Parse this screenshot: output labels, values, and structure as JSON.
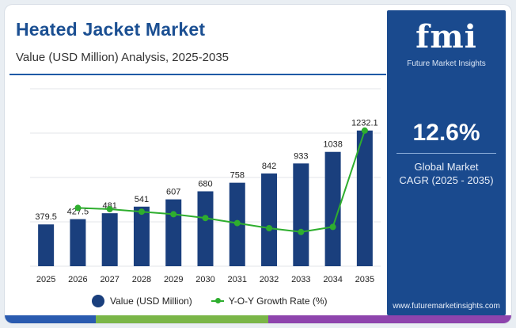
{
  "header": {
    "title": "Heated Jacket Market",
    "subtitle": "Value (USD Million) Analysis, 2025-2035"
  },
  "side_panel": {
    "logo_text": "fmi",
    "logo_sub": "Future Market Insights",
    "cagr_value": "12.6%",
    "cagr_label_1": "Global Market",
    "cagr_label_2": "CAGR (2025 - 2035)",
    "url": "www.futuremarketinsights.com",
    "background_color": "#1a4a8e"
  },
  "legend": {
    "bar_label": "Value (USD Million)",
    "line_label": "Y-O-Y Growth Rate (%)"
  },
  "chart_data": {
    "type": "bar",
    "categories": [
      "2025",
      "2026",
      "2027",
      "2028",
      "2029",
      "2030",
      "2031",
      "2032",
      "2033",
      "2034",
      "2035"
    ],
    "series": [
      {
        "name": "Value (USD Million)",
        "type": "bar",
        "color": "#1a3f7d",
        "values": [
          379.5,
          427.5,
          481,
          541,
          607,
          680,
          758,
          842,
          933,
          1038,
          1232.1
        ],
        "labels": [
          "379.5",
          "427.5",
          "481",
          "541",
          "607",
          "680",
          "758",
          "842",
          "933",
          "1038",
          "1232.1"
        ]
      },
      {
        "name": "Y-O-Y Growth Rate (%)",
        "type": "line",
        "color": "#2eae2e",
        "x": [
          "2026",
          "2027",
          "2028",
          "2029",
          "2030",
          "2031",
          "2032",
          "2033",
          "2034",
          "2035"
        ],
        "values": [
          12.6,
          12.5,
          12.3,
          12.1,
          11.8,
          11.4,
          11.0,
          10.7,
          11.1,
          18.7
        ]
      }
    ],
    "ylim": [
      0,
      1400
    ],
    "grid": true,
    "legend_position": "bottom"
  }
}
